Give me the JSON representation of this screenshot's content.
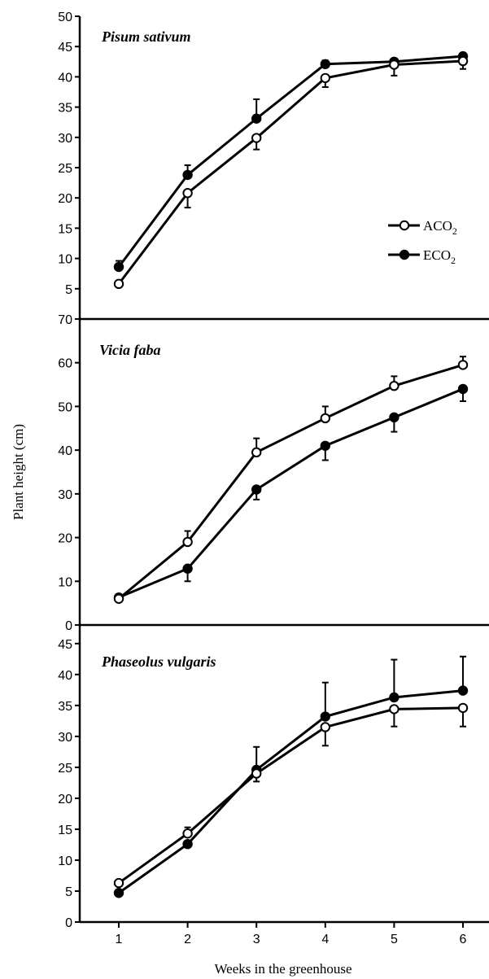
{
  "figure": {
    "ylabel": "Plant height (cm)",
    "xlabel": "Weeks in the greenhouse",
    "x_ticks": [
      "1",
      "2",
      "3",
      "4",
      "5",
      "6"
    ],
    "legend": {
      "entries": [
        {
          "name": "ACO",
          "sub": "2",
          "marker": "open-circle"
        },
        {
          "name": "ECO",
          "sub": "2",
          "marker": "filled-circle"
        }
      ],
      "placement": "top-panel-right"
    }
  },
  "chart_data": [
    {
      "type": "line",
      "title": "Pisum sativum",
      "x": [
        1,
        2,
        3,
        4,
        5,
        6
      ],
      "ylim": [
        0,
        50
      ],
      "yticks": [
        5,
        10,
        15,
        20,
        25,
        30,
        35,
        40,
        45,
        50
      ],
      "series": [
        {
          "name": "ACO2",
          "marker": "open",
          "values": [
            5.8,
            20.8,
            29.9,
            39.8,
            42.0,
            42.6
          ],
          "error": [
            0,
            2.4,
            1.9,
            1.5,
            1.8,
            1.3
          ]
        },
        {
          "name": "ECO2",
          "marker": "filled",
          "values": [
            8.6,
            23.8,
            33.1,
            42.1,
            42.5,
            43.4
          ],
          "error": [
            1.0,
            1.6,
            3.2,
            0.6,
            0.5,
            0.4
          ]
        }
      ]
    },
    {
      "type": "line",
      "title": "Vicia faba",
      "x": [
        1,
        2,
        3,
        4,
        5,
        6
      ],
      "ylim": [
        0,
        70
      ],
      "yticks": [
        0,
        10,
        20,
        30,
        40,
        50,
        60,
        70
      ],
      "series": [
        {
          "name": "ACO2",
          "marker": "open",
          "values": [
            6.0,
            19.0,
            39.5,
            47.3,
            54.7,
            59.5
          ],
          "error": [
            0,
            2.5,
            3.2,
            2.7,
            2.2,
            1.9
          ]
        },
        {
          "name": "ECO2",
          "marker": "filled",
          "values": [
            6.3,
            12.9,
            31.0,
            41.0,
            47.5,
            54.0
          ],
          "error": [
            0,
            2.9,
            2.3,
            3.3,
            3.3,
            2.8
          ]
        }
      ]
    },
    {
      "type": "line",
      "title": "Phaseolus vulgaris",
      "x": [
        1,
        2,
        3,
        4,
        5,
        6
      ],
      "ylim": [
        0,
        48
      ],
      "yticks": [
        0,
        5,
        10,
        15,
        20,
        25,
        30,
        35,
        40,
        45
      ],
      "series": [
        {
          "name": "ACO2",
          "marker": "open",
          "values": [
            6.3,
            14.3,
            24.0,
            31.5,
            34.4,
            34.6
          ],
          "error": [
            0,
            1.0,
            1.3,
            3.0,
            2.8,
            3.0
          ]
        },
        {
          "name": "ECO2",
          "marker": "filled",
          "values": [
            4.7,
            12.6,
            24.6,
            33.2,
            36.3,
            37.4
          ],
          "error": [
            0,
            0.5,
            3.7,
            5.5,
            6.1,
            5.5
          ]
        }
      ]
    }
  ]
}
